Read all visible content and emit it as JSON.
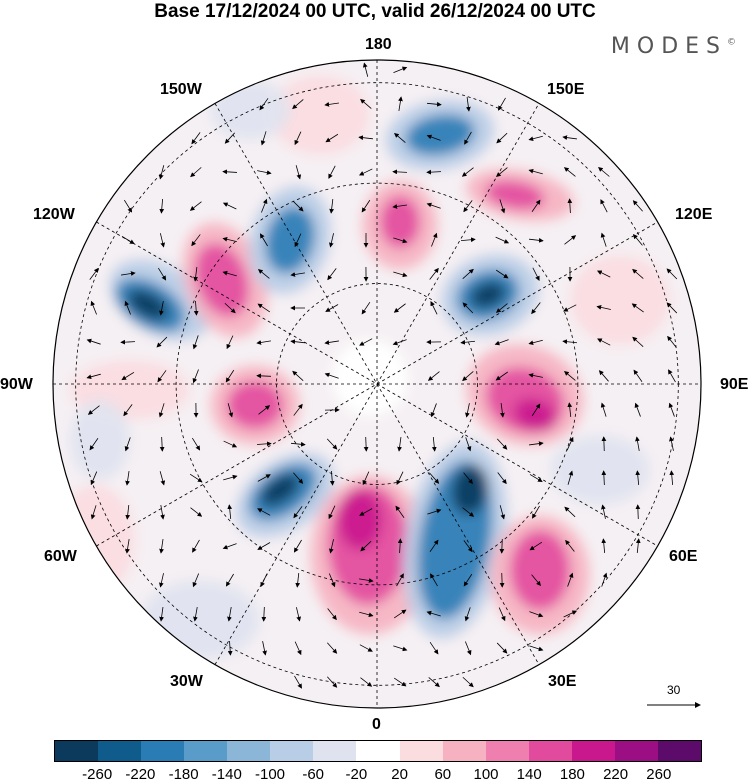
{
  "title": "Base 17/12/2024 00 UTC, valid 26/12/2024 00 UTC",
  "brand": "MODES",
  "brand_mark": "©",
  "longitude_labels": {
    "top": "180",
    "bottom": "0",
    "left": "90W",
    "right": "90E",
    "upper_left_1": "150W",
    "upper_left_2": "120W",
    "upper_right_1": "150E",
    "upper_right_2": "120E",
    "lower_left_1": "60W",
    "lower_left_2": "30W",
    "lower_right_1": "60E",
    "lower_right_2": "30E"
  },
  "reference_vector": {
    "value": "30"
  },
  "colorbar": {
    "colors": [
      "#0b3a5c",
      "#0f5b8c",
      "#2a7cb5",
      "#5a9cc9",
      "#8bb6d8",
      "#b8cde6",
      "#dfe3f0",
      "#ffffff",
      "#fbdde0",
      "#f6b2c0",
      "#ee7fae",
      "#e24a9e",
      "#c9178e",
      "#9c0f84",
      "#5d0b6b"
    ],
    "ticks": [
      "-260",
      "-220",
      "-180",
      "-140",
      "-100",
      "-60",
      "-20",
      "20",
      "60",
      "100",
      "140",
      "180",
      "220",
      "260"
    ]
  },
  "anomaly_colors": {
    "deep_blue": "#0b3a5c",
    "blue": "#2a7cb5",
    "light_blue": "#b8cde6",
    "pale_blue": "#dfe3f0",
    "pale_pink": "#fbdde0",
    "pink": "#f6b2c0",
    "magenta": "#e24a9e",
    "deep_magenta": "#c9178e"
  }
}
